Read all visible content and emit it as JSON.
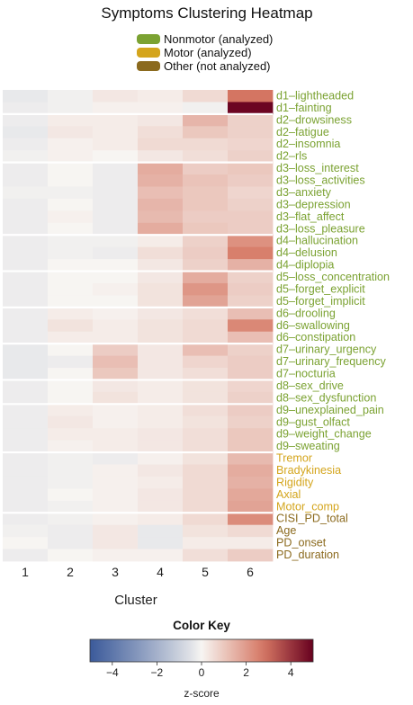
{
  "chart_data": {
    "type": "heatmap",
    "title": "Symptoms Clustering Heatmap",
    "xlabel": "Cluster",
    "columns": [
      "1",
      "2",
      "3",
      "4",
      "5",
      "6"
    ],
    "legend": [
      {
        "label": "Nonmotor (analyzed)",
        "color": "#7ba232"
      },
      {
        "label": "Motor (analyzed)",
        "color": "#d4a51c"
      },
      {
        "label": "Other (not analyzed)",
        "color": "#8b6a1e"
      }
    ],
    "color_key": {
      "title": "Color Key",
      "unit": "z-score",
      "range": [
        -5,
        5
      ],
      "ticks": [
        -4,
        -2,
        0,
        2,
        4
      ],
      "low_color": "#3b5a9a",
      "mid_color": "#f7f5f2",
      "high_color": "#67001f"
    },
    "rows": [
      {
        "label": "d1–lightheaded",
        "group": 0,
        "values": [
          -0.3,
          -0.1,
          0.3,
          0.2,
          0.6,
          2.8
        ]
      },
      {
        "label": "d1–fainting",
        "group": 0,
        "values": [
          -0.2,
          -0.1,
          0.1,
          0.1,
          -0.1,
          4.9
        ]
      },
      {
        "label": "d2–drowsiness",
        "group": 0,
        "values": [
          -0.2,
          0.2,
          0.2,
          0.3,
          1.4,
          0.8
        ]
      },
      {
        "label": "d2–fatigue",
        "group": 0,
        "values": [
          -0.3,
          0.3,
          0.2,
          0.5,
          1.0,
          0.8
        ]
      },
      {
        "label": "d2–insomnia",
        "group": 0,
        "values": [
          -0.2,
          0.1,
          0.2,
          0.6,
          0.6,
          0.7
        ]
      },
      {
        "label": "d2–rls",
        "group": 0,
        "values": [
          -0.1,
          0.1,
          0.0,
          0.3,
          0.5,
          0.8
        ]
      },
      {
        "label": "d3–loss_interest",
        "group": 0,
        "values": [
          -0.2,
          0.0,
          -0.2,
          1.6,
          0.9,
          1.0
        ]
      },
      {
        "label": "d3–loss_activities",
        "group": 0,
        "values": [
          -0.2,
          0.0,
          -0.2,
          1.5,
          1.1,
          0.9
        ]
      },
      {
        "label": "d3–anxiety",
        "group": 0,
        "values": [
          -0.1,
          -0.1,
          -0.2,
          1.2,
          1.0,
          0.7
        ]
      },
      {
        "label": "d3–depression",
        "group": 0,
        "values": [
          -0.2,
          0.0,
          -0.2,
          1.4,
          1.0,
          0.8
        ]
      },
      {
        "label": "d3–flat_affect",
        "group": 0,
        "values": [
          -0.2,
          0.1,
          -0.2,
          1.3,
          0.9,
          0.9
        ]
      },
      {
        "label": "d3–loss_pleasure",
        "group": 0,
        "values": [
          -0.2,
          0.0,
          -0.2,
          1.6,
          1.0,
          0.9
        ]
      },
      {
        "label": "d4–hallucination",
        "group": 0,
        "values": [
          -0.2,
          -0.1,
          -0.1,
          0.2,
          0.8,
          2.2
        ]
      },
      {
        "label": "d4–delusion",
        "group": 0,
        "values": [
          -0.2,
          -0.1,
          -0.2,
          0.5,
          0.9,
          2.6
        ]
      },
      {
        "label": "d4–diplopia",
        "group": 0,
        "values": [
          -0.2,
          0.0,
          0.0,
          0.3,
          0.8,
          1.5
        ]
      },
      {
        "label": "d5–loss_concentration",
        "group": 0,
        "values": [
          -0.2,
          0.0,
          0.0,
          0.3,
          1.6,
          0.8
        ]
      },
      {
        "label": "d5–forget_explicit",
        "group": 0,
        "values": [
          -0.2,
          0.0,
          0.1,
          0.4,
          2.1,
          0.9
        ]
      },
      {
        "label": "d5–forget_implicit",
        "group": 0,
        "values": [
          -0.2,
          0.0,
          0.0,
          0.4,
          1.8,
          0.8
        ]
      },
      {
        "label": "d6–drooling",
        "group": 0,
        "values": [
          -0.2,
          0.2,
          0.1,
          0.3,
          0.5,
          1.2
        ]
      },
      {
        "label": "d6–swallowing",
        "group": 0,
        "values": [
          -0.2,
          0.4,
          0.2,
          0.4,
          0.6,
          2.4
        ]
      },
      {
        "label": "d6–constipation",
        "group": 0,
        "values": [
          -0.2,
          0.2,
          0.2,
          0.4,
          0.6,
          1.2
        ]
      },
      {
        "label": "d7–urinary_urgency",
        "group": 0,
        "values": [
          -0.3,
          0.0,
          0.9,
          0.3,
          1.2,
          0.8
        ]
      },
      {
        "label": "d7–urinary_frequency",
        "group": 0,
        "values": [
          -0.3,
          -0.2,
          1.2,
          0.3,
          0.7,
          0.9
        ]
      },
      {
        "label": "d7–nocturia",
        "group": 0,
        "values": [
          -0.3,
          0.0,
          1.0,
          0.3,
          0.5,
          0.9
        ]
      },
      {
        "label": "d8–sex_drive",
        "group": 0,
        "values": [
          -0.2,
          0.0,
          0.3,
          0.2,
          0.4,
          0.7
        ]
      },
      {
        "label": "d8–sex_dysfunction",
        "group": 0,
        "values": [
          -0.2,
          0.0,
          0.4,
          0.2,
          0.4,
          0.8
        ]
      },
      {
        "label": "d9–unexplained_pain",
        "group": 0,
        "values": [
          -0.2,
          0.2,
          0.1,
          0.2,
          0.5,
          0.9
        ]
      },
      {
        "label": "d9–gust_olfact",
        "group": 0,
        "values": [
          -0.2,
          0.3,
          0.1,
          0.2,
          0.4,
          0.8
        ]
      },
      {
        "label": "d9–weight_change",
        "group": 0,
        "values": [
          -0.2,
          0.2,
          0.2,
          0.3,
          0.5,
          1.0
        ]
      },
      {
        "label": "d9–sweating",
        "group": 0,
        "values": [
          -0.2,
          0.1,
          0.2,
          0.3,
          0.5,
          1.0
        ]
      },
      {
        "label": "Tremor",
        "group": 1,
        "values": [
          -0.2,
          -0.1,
          -0.2,
          0.1,
          0.4,
          1.3
        ]
      },
      {
        "label": "Bradykinesia",
        "group": 1,
        "values": [
          -0.2,
          -0.1,
          0.1,
          0.3,
          0.6,
          1.6
        ]
      },
      {
        "label": "Rigidity",
        "group": 1,
        "values": [
          -0.2,
          -0.1,
          0.1,
          0.2,
          0.6,
          1.5
        ]
      },
      {
        "label": "Axial",
        "group": 1,
        "values": [
          -0.2,
          0.0,
          0.1,
          0.3,
          0.6,
          1.7
        ]
      },
      {
        "label": "Motor_comp",
        "group": 1,
        "values": [
          -0.2,
          -0.1,
          0.1,
          0.3,
          0.6,
          1.8
        ]
      },
      {
        "label": "CISI_PD_total",
        "group": 2,
        "values": [
          -0.2,
          -0.1,
          0.1,
          0.2,
          0.6,
          2.3
        ]
      },
      {
        "label": "Age",
        "group": 2,
        "values": [
          -0.1,
          -0.2,
          0.3,
          -0.3,
          0.4,
          0.6
        ]
      },
      {
        "label": "PD_onset",
        "group": 2,
        "values": [
          0.0,
          -0.2,
          0.3,
          -0.3,
          0.2,
          0.2
        ]
      },
      {
        "label": "PD_duration",
        "group": 2,
        "values": [
          -0.2,
          0.0,
          0.1,
          0.1,
          0.5,
          0.9
        ]
      }
    ],
    "row_breaks_after": [
      1,
      5,
      11,
      14,
      17,
      20,
      23,
      25,
      29,
      34
    ]
  }
}
